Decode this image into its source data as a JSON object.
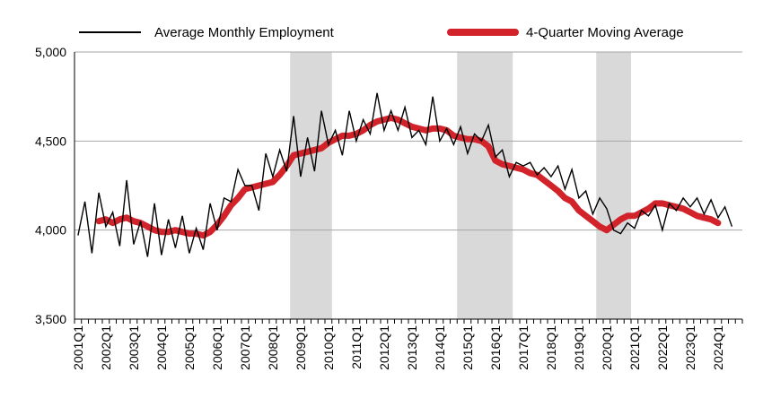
{
  "chart_data": {
    "type": "line",
    "title": "",
    "xlabel": "",
    "ylabel": "",
    "ylim": [
      3500,
      5000
    ],
    "yticks": [
      3500,
      4000,
      4500,
      5000
    ],
    "ytick_labels": [
      "3,500",
      "4,000",
      "4,500",
      "5,000"
    ],
    "grid": "horizontal",
    "legend_position": "top",
    "x_start_quarter": "2001Q1",
    "xtick_labels": [
      "2001Q1",
      "2002Q1",
      "2003Q1",
      "2004Q1",
      "2005Q1",
      "2006Q1",
      "2007Q1",
      "2008Q1",
      "2009Q1",
      "2010Q1",
      "2011Q1",
      "2012Q1",
      "2013Q1",
      "2014Q1",
      "2015Q1",
      "2016Q1",
      "2017Q1",
      "2018Q1",
      "2019Q1",
      "2020Q1",
      "2021Q1",
      "2022Q1",
      "2023Q1",
      "2024Q1"
    ],
    "recessions": [
      {
        "start": "2008Q4",
        "end": "2010Q1"
      },
      {
        "start": "2014Q4",
        "end": "2016Q3"
      },
      {
        "start": "2019Q4",
        "end": "2020Q4"
      }
    ],
    "series": [
      {
        "name": "Average Monthly Employment",
        "color": "#000000",
        "values": [
          3970,
          4160,
          3870,
          4210,
          4020,
          4100,
          3910,
          4280,
          3920,
          4050,
          3850,
          4150,
          3860,
          4060,
          3900,
          4080,
          3870,
          4010,
          3890,
          4150,
          4000,
          4180,
          4160,
          4340,
          4250,
          4250,
          4110,
          4430,
          4300,
          4450,
          4330,
          4640,
          4300,
          4520,
          4330,
          4670,
          4480,
          4560,
          4420,
          4670,
          4500,
          4620,
          4540,
          4770,
          4560,
          4670,
          4560,
          4690,
          4520,
          4560,
          4480,
          4750,
          4500,
          4570,
          4480,
          4580,
          4430,
          4540,
          4500,
          4590,
          4410,
          4450,
          4300,
          4380,
          4360,
          4380,
          4310,
          4350,
          4300,
          4360,
          4230,
          4340,
          4180,
          4220,
          4090,
          4180,
          4120,
          4000,
          3980,
          4040,
          4010,
          4110,
          4080,
          4140,
          4000,
          4150,
          4110,
          4180,
          4130,
          4180,
          4090,
          4170,
          4070,
          4130,
          4020
        ]
      },
      {
        "name": "4-Quarter Moving Average",
        "color": "#d2232a",
        "start_index": 3,
        "values": [
          4050,
          4060,
          4040,
          4060,
          4070,
          4050,
          4040,
          4020,
          4000,
          3990,
          3990,
          4000,
          3990,
          3980,
          3980,
          3970,
          3990,
          4030,
          4080,
          4140,
          4180,
          4230,
          4240,
          4250,
          4260,
          4270,
          4310,
          4360,
          4420,
          4430,
          4440,
          4450,
          4460,
          4490,
          4510,
          4530,
          4530,
          4540,
          4560,
          4590,
          4610,
          4620,
          4630,
          4620,
          4600,
          4580,
          4570,
          4560,
          4570,
          4570,
          4560,
          4530,
          4520,
          4510,
          4510,
          4500,
          4470,
          4390,
          4370,
          4360,
          4350,
          4340,
          4320,
          4310,
          4280,
          4250,
          4220,
          4180,
          4160,
          4110,
          4080,
          4050,
          4020,
          4000,
          4030,
          4060,
          4080,
          4080,
          4100,
          4120,
          4150,
          4150,
          4140,
          4130,
          4120,
          4100,
          4080,
          4070,
          4060,
          4040
        ]
      }
    ]
  }
}
